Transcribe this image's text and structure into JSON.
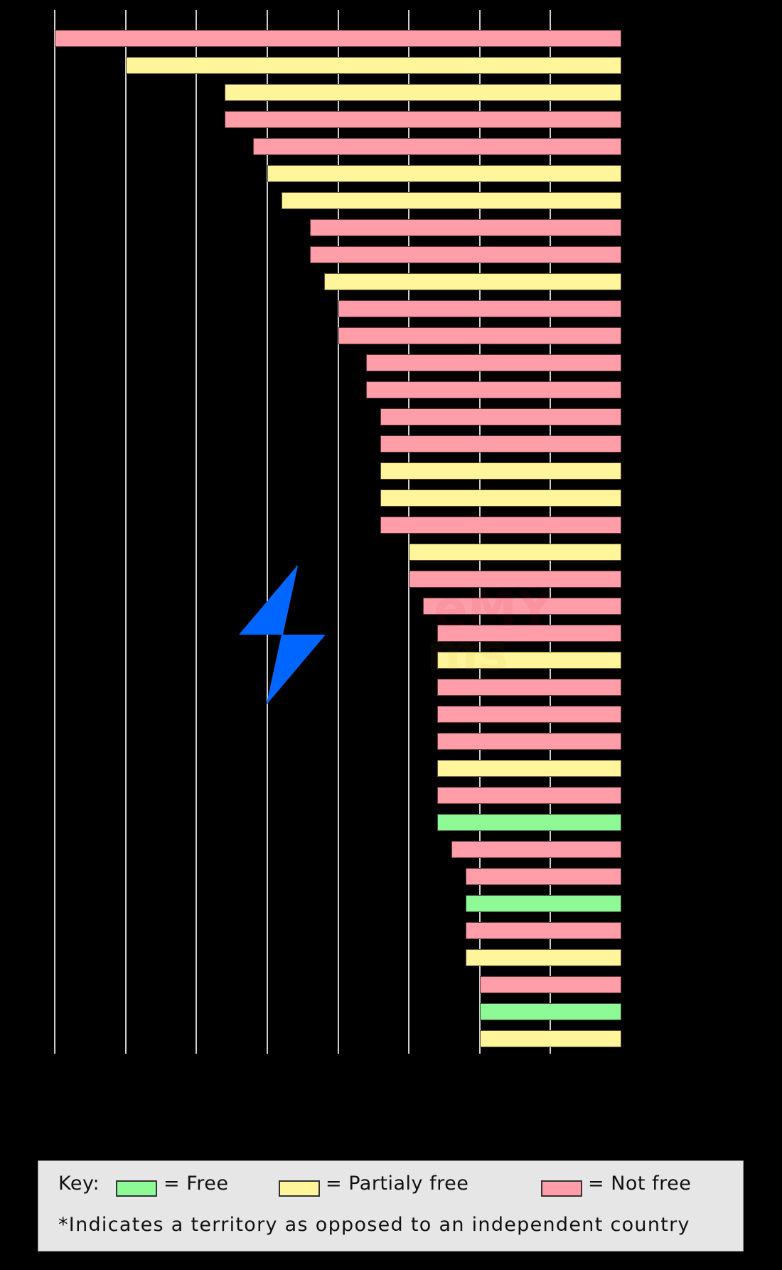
{
  "chart_data": {
    "type": "bar",
    "orientation": "horizontal",
    "title": "",
    "xlabel": "",
    "ylabel": "",
    "note": "Category labels and axis tick labels are not visible (rendered black on black). Values are bar lengths estimated from gridlines, measured from the right-hand baseline; gridlines every 10 units.",
    "xlim": [
      0,
      80
    ],
    "axis_reversed": true,
    "grid": true,
    "gridlines": [
      10,
      20,
      30,
      40,
      50,
      60,
      70,
      80
    ],
    "legend_position": "bottom",
    "legend": [
      {
        "name": "Free",
        "color": "#8efa96"
      },
      {
        "name": "Partialy free",
        "color": "#fff59a"
      },
      {
        "name": "Not free",
        "color": "#ff9ea8"
      }
    ],
    "categories": [
      "",
      "",
      "",
      "",
      "",
      "",
      "",
      "",
      "",
      "",
      "",
      "",
      "",
      "",
      "",
      "",
      "",
      "",
      "",
      "",
      "",
      "",
      "",
      "",
      "",
      "",
      "",
      "",
      "",
      "",
      "",
      "",
      "",
      "",
      "",
      "",
      "",
      ""
    ],
    "values": [
      80,
      70,
      56,
      56,
      52,
      50,
      48,
      44,
      44,
      42,
      40,
      40,
      36,
      36,
      34,
      34,
      34,
      34,
      34,
      30,
      30,
      28,
      26,
      26,
      26,
      26,
      26,
      26,
      26,
      26,
      24,
      22,
      22,
      22,
      22,
      20,
      20,
      20
    ],
    "status": [
      "Not free",
      "Partialy free",
      "Partialy free",
      "Not free",
      "Not free",
      "Partialy free",
      "Partialy free",
      "Not free",
      "Not free",
      "Partialy free",
      "Not free",
      "Not free",
      "Not free",
      "Not free",
      "Not free",
      "Not free",
      "Partialy free",
      "Partialy free",
      "Not free",
      "Partialy free",
      "Not free",
      "Not free",
      "Not free",
      "Partialy free",
      "Not free",
      "Not free",
      "Not free",
      "Partialy free",
      "Not free",
      "Free",
      "Not free",
      "Not free",
      "Free",
      "Not free",
      "Partialy free",
      "Not free",
      "Free",
      "Partialy free"
    ]
  },
  "colors": {
    "background": "#000000",
    "gridline": "#cfcfcf",
    "free": "#8efa96",
    "partialy_free": "#fff59a",
    "not_free": "#ff9ea8",
    "bolt": "#0066ff",
    "legend_bg": "#e6e6e6"
  },
  "legend": {
    "key_label": "Key:",
    "free_label": "= Free",
    "partial_label": "= Partialy free",
    "not_free_label": "= Not free",
    "footnote": "*Indicates a territory as opposed to an independent country"
  },
  "icons": {
    "bolt": "lightning-bolt-icon"
  }
}
